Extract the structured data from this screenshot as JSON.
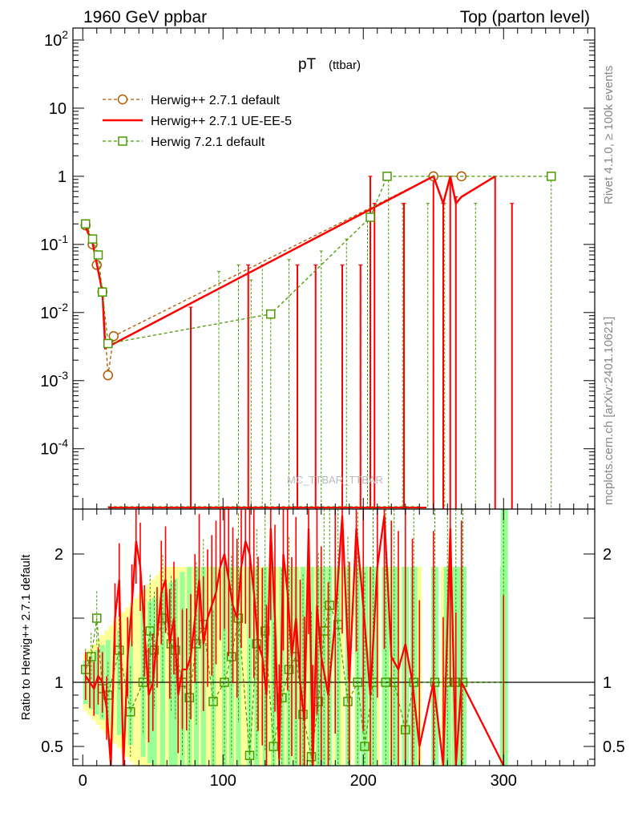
{
  "header": {
    "left": "1960 GeV ppbar",
    "right": "Top (parton level)"
  },
  "title": {
    "main": "pT",
    "sub": "(ttbar)"
  },
  "side_text": {
    "rivet": "Rivet 4.1.0, ≥ 100k events",
    "mcplots": "mcplots.cern.ch [arXiv:2401.10621]"
  },
  "watermark": "MC_TTBAR_TTBAR",
  "colors": {
    "herwig271": "#b35900",
    "ueee5": "#ff0000",
    "herwig721": "#4a9a00",
    "yellow_band": "#ffff99",
    "green_band": "#99ff99"
  },
  "chart_data": [
    {
      "type": "line",
      "panel": "main",
      "xlabel": "",
      "ylabel": "",
      "xlim": [
        -7,
        365
      ],
      "ylim": [
        1.3e-05,
        150
      ],
      "yscale": "log",
      "x_ticks": [
        "0",
        "100",
        "200",
        "300"
      ],
      "y_ticks": [
        "10^-4",
        "10^-3",
        "10^-2",
        "10^-1",
        "1",
        "10",
        "10^2"
      ],
      "series": [
        {
          "name": "Herwig++ 2.7.1 default",
          "style": "dashed-circle",
          "x": [
            2,
            7,
            10,
            14,
            18,
            22,
            250,
            270
          ],
          "y": [
            0.19,
            0.1,
            0.05,
            0.02,
            0.0012,
            0.0045,
            1.0,
            1.0
          ]
        },
        {
          "name": "Herwig++ 2.7.1 UE-EE-5",
          "style": "solid",
          "x": [
            2,
            7,
            10,
            14,
            16,
            250,
            257,
            262,
            266,
            270,
            294
          ],
          "y": [
            0.18,
            0.105,
            0.052,
            0.02,
            0.003,
            1.0,
            0.4,
            1.0,
            0.4,
            0.5,
            1.0
          ]
        },
        {
          "name": "Herwig 7.2.1 default",
          "style": "dashed-square",
          "x": [
            2,
            7,
            11,
            14,
            18,
            134,
            205,
            217,
            334
          ],
          "y": [
            0.2,
            0.12,
            0.07,
            0.02,
            0.0035,
            0.0095,
            0.25,
            1.0,
            1.0
          ]
        }
      ],
      "error_spikes": {
        "red_x": [
          77,
          118,
          153,
          166,
          185,
          198,
          205,
          208,
          229,
          250,
          257,
          262,
          266,
          294,
          306
        ],
        "red_y": [
          0.012,
          0.05,
          0.05,
          0.05,
          0.05,
          0.05,
          1.0,
          0.4,
          0.4,
          1.0,
          0.4,
          1.0,
          0.5,
          1.0,
          0.4
        ],
        "green_x": [
          97,
          111,
          120,
          128,
          134,
          147,
          170,
          188,
          203,
          218,
          228,
          246,
          258,
          280,
          334
        ],
        "green_y": [
          0.04,
          0.05,
          0.03,
          0.05,
          0.0095,
          0.06,
          0.08,
          0.12,
          0.25,
          1.0,
          0.4,
          0.4,
          0.4,
          0.4,
          1.0
        ]
      }
    },
    {
      "type": "line",
      "panel": "ratio",
      "ylabel": "Ratio to Herwig++ 2.7.1 default",
      "xlim": [
        -7,
        365
      ],
      "ylim": [
        0.35,
        2.35
      ],
      "y_ticks": [
        "0.5",
        "1",
        "2"
      ],
      "x_ticks": [
        "0",
        "100",
        "200",
        "300"
      ],
      "reference": 1,
      "series": [
        {
          "name": "Herwig++ 2.7.1 UE-EE-5",
          "x": [
            2,
            5,
            8,
            11,
            14,
            17,
            20,
            23,
            26,
            29,
            32,
            35,
            38,
            41,
            44,
            47,
            50,
            53,
            56,
            59,
            62,
            65,
            68,
            71,
            74,
            77,
            80,
            83,
            86,
            89,
            92,
            95,
            98,
            101,
            104,
            107,
            110,
            113,
            116,
            119,
            122,
            125,
            128,
            131,
            134,
            137,
            140,
            143,
            146,
            149,
            152,
            155,
            158,
            161,
            164,
            167,
            170,
            175,
            180,
            185,
            190,
            195,
            200,
            205,
            210,
            215,
            220,
            225,
            230,
            235,
            240,
            250,
            257,
            262,
            266,
            270,
            300
          ],
          "y": [
            1.05,
            1.0,
            0.95,
            1.05,
            1.0,
            0.8,
            0.3,
            1.5,
            1.8,
            0.3,
            1.2,
            1.6,
            2.1,
            1.9,
            1.4,
            0.9,
            1.0,
            1.35,
            1.7,
            1.8,
            1.3,
            1.5,
            0.9,
            1.1,
            1.1,
            1.2,
            1.5,
            1.8,
            1.3,
            1.5,
            1.6,
            1.7,
            1.9,
            2.0,
            1.8,
            1.6,
            1.5,
            1.9,
            2.1,
            2.0,
            1.7,
            1.3,
            1.2,
            0.9,
            2.2,
            1.5,
            0.4,
            2.0,
            1.7,
            1.2,
            1.5,
            1.0,
            0.7,
            2.2,
            0.3,
            1.6,
            1.2,
            0.9,
            1.5,
            2.3,
            1.0,
            2.2,
            1.6,
            0.9,
            1.9,
            2.3,
            1.2,
            1.1,
            1.3,
            1.0,
            0.5,
            1.0,
            0.3,
            2.2,
            0.3,
            1.0,
            0.3
          ]
        },
        {
          "name": "Herwig 7.2.1 default",
          "x": [
            2,
            6,
            10,
            14,
            18,
            26,
            34,
            43,
            48,
            51,
            57,
            63,
            66,
            71,
            76,
            81,
            86,
            93,
            101,
            106,
            111,
            119,
            124,
            130,
            136,
            142,
            147,
            152,
            157,
            163,
            168,
            172,
            176,
            182,
            189,
            196,
            201,
            207,
            216,
            222,
            230,
            236,
            251,
            260,
            266,
            271,
            300
          ],
          "x_kept": true,
          "y": [
            1.1,
            1.2,
            1.5,
            0.95,
            0.9,
            1.25,
            0.77,
            1.0,
            1.4,
            1.25,
            1.5,
            1.3,
            1.25,
            1.0,
            0.88,
            1.3,
            1.45,
            0.85,
            1.0,
            1.2,
            1.5,
            0.43,
            1.3,
            1.4,
            0.5,
            0.88,
            1.1,
            1.2,
            0.75,
            0.42,
            0.85,
            1.4,
            1.6,
            1.45,
            0.85,
            1.0,
            0.5,
            1.0,
            1.0,
            1.0,
            0.63,
            1.0,
            1.0,
            1.0,
            1.0,
            1.0,
            1.0
          ]
        }
      ]
    }
  ],
  "legend": {
    "items": [
      {
        "label": "Herwig++ 2.7.1 default"
      },
      {
        "label": "Herwig++ 2.7.1 UE-EE-5"
      },
      {
        "label": "Herwig 7.2.1 default"
      }
    ]
  }
}
